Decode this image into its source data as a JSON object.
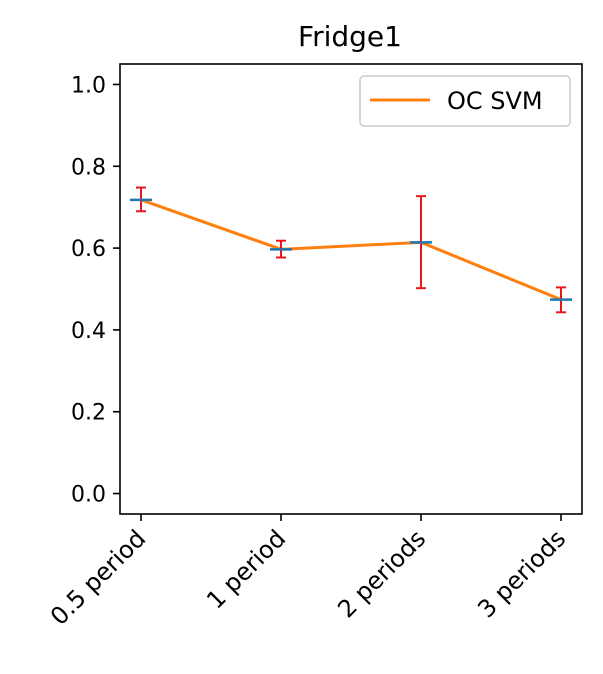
{
  "chart_data": {
    "type": "line",
    "title": "Fridge1",
    "categories": [
      "0.5 period",
      "1 period",
      "2 periods",
      "3 periods"
    ],
    "series": [
      {
        "name": "OC SVM",
        "values": [
          0.718,
          0.597,
          0.614,
          0.474
        ],
        "error_low": [
          0.69,
          0.577,
          0.502,
          0.443
        ],
        "error_high": [
          0.748,
          0.618,
          0.727,
          0.504
        ]
      }
    ],
    "ylim": [
      -0.05,
      1.05
    ],
    "yticks": [
      "0.0",
      "0.2",
      "0.4",
      "0.6",
      "0.8",
      "1.0"
    ],
    "ytick_values": [
      0.0,
      0.2,
      0.4,
      0.6,
      0.8,
      1.0
    ],
    "grid": false,
    "legend_position": "upper right",
    "colors": {
      "line": "#ff7f0e",
      "errorbar": "#e8171b",
      "marker": "#1f77b4",
      "axes": "#000000"
    }
  }
}
